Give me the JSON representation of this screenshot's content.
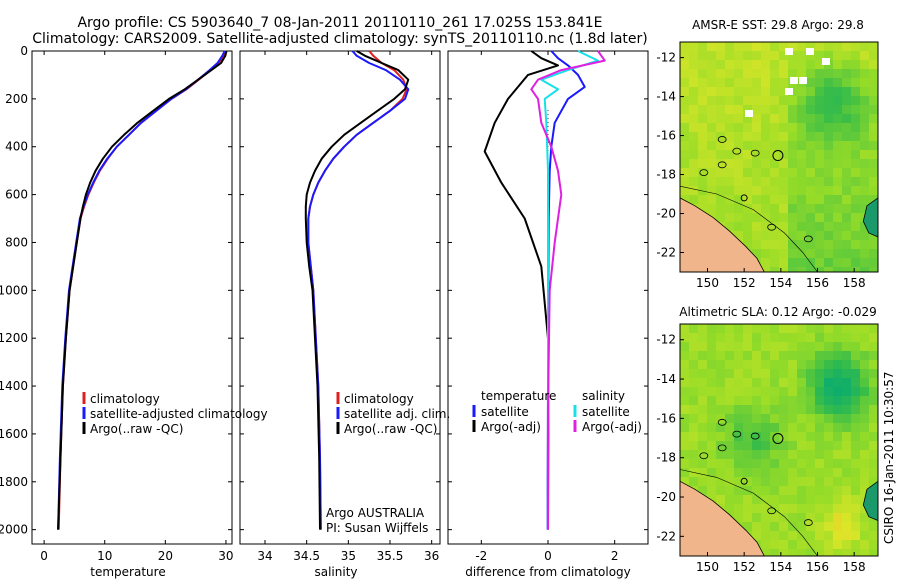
{
  "title_line1": "Argo profile: CS 5903640_7 08-Jan-2011 20110110_261 17.025S 153.841E",
  "title_line2": "Climatology: CARS2009. Satellite-adjusted climatology: synTS_20110110.nc (1.8d later)",
  "credit_argo": "Argo AUSTRALIA",
  "credit_pi": "PI: Susan Wijffels",
  "side_stamp": "CSIRO 16-Jan-2011 10:30:57",
  "colors": {
    "climatology": "#e02020",
    "satellite": "#1a1aff",
    "argo": "#000000",
    "cyan": "#18e0e8",
    "magenta": "#e020e0"
  },
  "chart_data": [
    {
      "id": "temperature",
      "type": "line",
      "xlabel": "temperature",
      "ylabel": "",
      "xlim": [
        -2,
        31
      ],
      "ylim": [
        2060,
        0
      ],
      "y_reversed": true,
      "x_ticks": [
        0,
        10,
        20,
        30
      ],
      "y_ticks": [
        0,
        200,
        400,
        600,
        800,
        1000,
        1200,
        1400,
        1600,
        1800,
        2000
      ],
      "legend": {
        "placement": "lower-center",
        "entries": [
          "climatology",
          "satellite-adjusted climatology",
          "Argo(..raw -QC)"
        ]
      },
      "series": [
        {
          "name": "climatology",
          "color": "red",
          "x": [
            30,
            29.6,
            28.8,
            27.5,
            25.5,
            23.5,
            21,
            18.5,
            16,
            14,
            12,
            10.5,
            9.2,
            8.2,
            7.3,
            6.6,
            6,
            5.4,
            4.8,
            4.2,
            3.6,
            3.1,
            2.7,
            2.4
          ],
          "y": [
            0,
            20,
            50,
            80,
            120,
            160,
            200,
            250,
            300,
            350,
            400,
            450,
            500,
            550,
            600,
            650,
            700,
            800,
            900,
            1000,
            1200,
            1400,
            1700,
            2000
          ]
        },
        {
          "name": "satellite-adjusted climatology",
          "color": "blue",
          "x": [
            29.8,
            29.4,
            28.6,
            27.3,
            25.4,
            23.4,
            21,
            18.5,
            16,
            14,
            12,
            10.4,
            9.1,
            8.1,
            7.2,
            6.5,
            5.9,
            5.3,
            4.7,
            4.1,
            3.5,
            3,
            2.6,
            2.3
          ],
          "y": [
            0,
            20,
            50,
            80,
            120,
            160,
            200,
            250,
            300,
            350,
            400,
            450,
            500,
            550,
            600,
            650,
            700,
            800,
            900,
            1000,
            1200,
            1400,
            1700,
            2000
          ]
        },
        {
          "name": "Argo(..raw -QC)",
          "color": "black",
          "x": [
            30.1,
            29.9,
            29.2,
            27.6,
            25.4,
            23.2,
            20.6,
            18,
            15.4,
            13.2,
            11.2,
            9.7,
            8.5,
            7.6,
            6.9,
            6.4,
            6,
            5.4,
            4.8,
            4.2,
            3.6,
            3.1,
            2.7,
            2.3
          ],
          "y": [
            0,
            20,
            50,
            80,
            120,
            160,
            200,
            250,
            300,
            350,
            400,
            450,
            500,
            550,
            600,
            650,
            700,
            800,
            900,
            1000,
            1200,
            1400,
            1700,
            2000
          ]
        }
      ]
    },
    {
      "id": "salinity",
      "type": "line",
      "xlabel": "salinity",
      "ylabel": "",
      "xlim": [
        33.7,
        36.1
      ],
      "ylim": [
        2060,
        0
      ],
      "y_reversed": true,
      "x_ticks": [
        34,
        34.5,
        35,
        35.5,
        36
      ],
      "legend": {
        "placement": "lower-center",
        "entries": [
          "climatology",
          "satellite adj. clim.",
          "Argo(..raw -QC)"
        ]
      },
      "series": [
        {
          "name": "climatology",
          "color": "red",
          "x": [
            35.25,
            35.3,
            35.4,
            35.55,
            35.66,
            35.7,
            35.65,
            35.5,
            35.3,
            35.1,
            34.95,
            34.82,
            34.72,
            34.64,
            34.58,
            34.54,
            34.52,
            34.52,
            34.55,
            34.58,
            34.61,
            34.64,
            34.66,
            34.67
          ],
          "y": [
            0,
            20,
            50,
            80,
            120,
            160,
            200,
            250,
            300,
            350,
            400,
            450,
            500,
            550,
            600,
            650,
            700,
            800,
            900,
            1000,
            1200,
            1400,
            1700,
            2000
          ]
        },
        {
          "name": "satellite adj. clim.",
          "color": "blue",
          "x": [
            35.05,
            35.1,
            35.25,
            35.45,
            35.62,
            35.72,
            35.68,
            35.5,
            35.3,
            35.1,
            34.95,
            34.82,
            34.72,
            34.64,
            34.58,
            34.54,
            34.52,
            34.52,
            34.55,
            34.58,
            34.61,
            34.64,
            34.66,
            34.67
          ],
          "y": [
            0,
            20,
            50,
            80,
            120,
            160,
            200,
            250,
            300,
            350,
            400,
            450,
            500,
            550,
            600,
            650,
            700,
            800,
            900,
            1000,
            1200,
            1400,
            1700,
            2000
          ]
        },
        {
          "name": "Argo(..raw -QC)",
          "color": "black",
          "x": [
            35.1,
            35.2,
            35.4,
            35.6,
            35.72,
            35.68,
            35.55,
            35.35,
            35.15,
            34.95,
            34.8,
            34.68,
            34.6,
            34.54,
            34.5,
            34.49,
            34.49,
            34.5,
            34.53,
            34.57,
            34.6,
            34.63,
            34.65,
            34.66
          ],
          "y": [
            0,
            20,
            50,
            80,
            120,
            160,
            200,
            250,
            300,
            350,
            400,
            450,
            500,
            550,
            600,
            650,
            700,
            800,
            900,
            1000,
            1200,
            1400,
            1700,
            2000
          ]
        }
      ]
    },
    {
      "id": "difference",
      "type": "line",
      "xlabel": "difference from climatology",
      "ylabel": "",
      "xlim": [
        -3,
        3
      ],
      "ylim": [
        2060,
        0
      ],
      "y_reversed": true,
      "x_ticks": [
        -2,
        0,
        2
      ],
      "legend": {
        "placement": "upper-lower-center",
        "groups": [
          {
            "title": "temperature",
            "entries": [
              "satellite",
              "Argo(-adj)"
            ]
          },
          {
            "title": "salinity",
            "entries": [
              "satellite",
              "Argo(-adj)"
            ]
          }
        ]
      },
      "series": [
        {
          "name": "temperature satellite",
          "color": "blue",
          "x": [
            0.1,
            0.3,
            0.6,
            0.9,
            1.1,
            0.6,
            0.2,
            0.1,
            0.05,
            0.02,
            0.01,
            0.0,
            -0.01,
            -0.01
          ],
          "y": [
            0,
            30,
            60,
            100,
            150,
            200,
            300,
            400,
            500,
            700,
            1000,
            1400,
            1800,
            2000
          ]
        },
        {
          "name": "temperature Argo(-adj)",
          "color": "black",
          "x": [
            -0.5,
            -0.2,
            0.3,
            -0.6,
            -0.9,
            -1.2,
            -1.6,
            -1.9,
            -1.4,
            -0.7,
            -0.2,
            0.0,
            0.01,
            0.0
          ],
          "y": [
            0,
            30,
            60,
            100,
            150,
            200,
            300,
            420,
            550,
            700,
            900,
            1200,
            1600,
            2000
          ]
        },
        {
          "name": "salinity satellite",
          "color": "cyan",
          "x": [
            0.9,
            1.5,
            0.6,
            -0.2,
            0.3,
            -0.1,
            -0.05,
            0.0,
            0.0,
            0.0,
            0.0,
            0.0
          ],
          "y": [
            0,
            40,
            80,
            120,
            160,
            200,
            300,
            500,
            800,
            1200,
            1600,
            2000
          ]
        },
        {
          "name": "salinity Argo(-adj)",
          "color": "magenta",
          "x": [
            1.5,
            1.7,
            0.4,
            -0.3,
            -0.5,
            -0.3,
            -0.2,
            0.1,
            0.3,
            0.4,
            0.2,
            0.05,
            0.0,
            0.0
          ],
          "y": [
            0,
            40,
            80,
            120,
            160,
            200,
            300,
            400,
            500,
            600,
            800,
            1000,
            1500,
            2000
          ]
        }
      ]
    },
    {
      "id": "sst-map",
      "type": "heatmap",
      "title": "AMSR-E SST: 29.8 Argo: 29.8",
      "x_ticks": [
        150,
        152,
        154,
        156,
        158
      ],
      "y_ticks": [
        -12,
        -14,
        -16,
        -18,
        -20,
        -22
      ],
      "xlim": [
        148.5,
        159.3
      ],
      "ylim": [
        -23,
        -11.2
      ],
      "argo_position": [
        153.841,
        -17.025
      ]
    },
    {
      "id": "sla-map",
      "type": "heatmap",
      "title": "Altimetric SLA: 0.12 Argo: -0.029",
      "x_ticks": [
        150,
        152,
        154,
        156,
        158
      ],
      "y_ticks": [
        -12,
        -14,
        -16,
        -18,
        -20,
        -22
      ],
      "xlim": [
        148.5,
        159.3
      ],
      "ylim": [
        -23,
        -11.2
      ],
      "argo_position": [
        153.841,
        -17.025
      ]
    }
  ]
}
